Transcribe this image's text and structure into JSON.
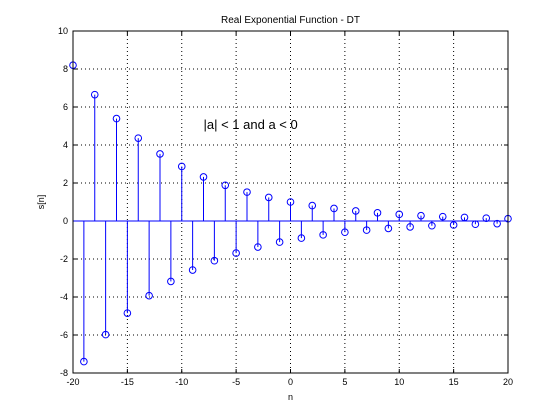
{
  "chart_data": {
    "type": "stem",
    "title": "Real Exponential Function - DT",
    "xlabel": "n",
    "ylabel": "s[n]",
    "annotation": "|a| < 1 and a < 0",
    "xlim": [
      -20,
      20
    ],
    "ylim": [
      -8,
      10
    ],
    "xticks": [
      -20,
      -15,
      -10,
      -5,
      0,
      5,
      10,
      15,
      20
    ],
    "yticks": [
      -8,
      -6,
      -4,
      -2,
      0,
      2,
      4,
      6,
      8,
      10
    ],
    "grid": true,
    "grid_style": "dotted",
    "series": [
      {
        "color": "#0000ff",
        "marker": "circle",
        "x": [
          -20,
          -19,
          -18,
          -17,
          -16,
          -15,
          -14,
          -13,
          -12,
          -11,
          -10,
          -9,
          -8,
          -7,
          -6,
          -5,
          -4,
          -3,
          -2,
          -1,
          0,
          1,
          2,
          3,
          4,
          5,
          6,
          7,
          8,
          9,
          10,
          11,
          12,
          13,
          14,
          15,
          16,
          17,
          18,
          19,
          20
        ],
        "y": [
          8.2,
          -7.4,
          6.65,
          -5.98,
          5.39,
          -4.85,
          4.36,
          -3.93,
          3.53,
          -3.18,
          2.87,
          -2.58,
          2.32,
          -2.09,
          1.88,
          -1.69,
          1.52,
          -1.37,
          1.24,
          -1.11,
          1.0,
          -0.9,
          0.81,
          -0.73,
          0.66,
          -0.59,
          0.53,
          -0.48,
          0.43,
          -0.39,
          0.35,
          -0.31,
          0.28,
          -0.25,
          0.23,
          -0.21,
          0.19,
          -0.17,
          0.15,
          -0.14,
          0.12
        ]
      }
    ]
  }
}
